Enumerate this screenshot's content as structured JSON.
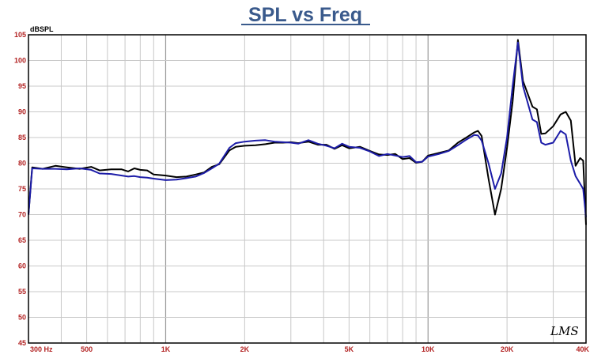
{
  "chart_data": {
    "type": "line",
    "title": "SPL vs Freq",
    "ylabel": "dBSPL",
    "xlabel": "",
    "xscale": "log",
    "xlim": [
      300,
      40000
    ],
    "ylim": [
      45,
      105
    ],
    "grid": true,
    "x_ticks": [
      {
        "value": 300,
        "label": "300  Hz"
      },
      {
        "value": 500,
        "label": "500"
      },
      {
        "value": 1000,
        "label": "1K"
      },
      {
        "value": 2000,
        "label": "2K"
      },
      {
        "value": 5000,
        "label": "5K"
      },
      {
        "value": 10000,
        "label": "10K"
      },
      {
        "value": 20000,
        "label": "20K"
      },
      {
        "value": 40000,
        "label": "40K"
      }
    ],
    "y_ticks": [
      {
        "value": 105,
        "label": "105"
      },
      {
        "value": 100,
        "label": "100"
      },
      {
        "value": 95,
        "label": "95"
      },
      {
        "value": 90,
        "label": "90"
      },
      {
        "value": 85,
        "label": "85"
      },
      {
        "value": 80,
        "label": "80"
      },
      {
        "value": 75,
        "label": "75"
      },
      {
        "value": 70,
        "label": "70"
      },
      {
        "value": 65,
        "label": "65"
      },
      {
        "value": 60,
        "label": "60"
      },
      {
        "value": 55,
        "label": "55"
      },
      {
        "value": 50,
        "label": "50"
      },
      {
        "value": 45,
        "label": "45"
      }
    ],
    "logo_text": "LMS",
    "series": [
      {
        "color": "#000000",
        "points": [
          [
            300,
            70
          ],
          [
            310,
            79.2
          ],
          [
            340,
            78.9
          ],
          [
            380,
            79.5
          ],
          [
            420,
            79.2
          ],
          [
            470,
            78.9
          ],
          [
            520,
            79.3
          ],
          [
            560,
            78.6
          ],
          [
            620,
            78.8
          ],
          [
            680,
            78.8
          ],
          [
            720,
            78.4
          ],
          [
            760,
            79.0
          ],
          [
            800,
            78.7
          ],
          [
            850,
            78.6
          ],
          [
            900,
            77.8
          ],
          [
            1000,
            77.6
          ],
          [
            1100,
            77.3
          ],
          [
            1200,
            77.4
          ],
          [
            1300,
            77.8
          ],
          [
            1400,
            78.2
          ],
          [
            1500,
            79.3
          ],
          [
            1600,
            79.8
          ],
          [
            1750,
            82.5
          ],
          [
            1850,
            83.2
          ],
          [
            2000,
            83.4
          ],
          [
            2200,
            83.5
          ],
          [
            2400,
            83.7
          ],
          [
            2600,
            84.0
          ],
          [
            2800,
            84.0
          ],
          [
            3000,
            84.1
          ],
          [
            3200,
            83.9
          ],
          [
            3500,
            84.2
          ],
          [
            3800,
            83.6
          ],
          [
            4100,
            83.6
          ],
          [
            4400,
            82.8
          ],
          [
            4700,
            83.5
          ],
          [
            5000,
            82.9
          ],
          [
            5500,
            83.2
          ],
          [
            6000,
            82.4
          ],
          [
            6500,
            81.7
          ],
          [
            7000,
            81.6
          ],
          [
            7500,
            81.8
          ],
          [
            8000,
            80.8
          ],
          [
            8500,
            81.0
          ],
          [
            9000,
            80.1
          ],
          [
            9500,
            80.3
          ],
          [
            10000,
            81.5
          ],
          [
            11000,
            82.0
          ],
          [
            12000,
            82.5
          ],
          [
            13000,
            84.0
          ],
          [
            14000,
            85.0
          ],
          [
            15000,
            86.0
          ],
          [
            15500,
            86.3
          ],
          [
            16000,
            85.3
          ],
          [
            17000,
            77
          ],
          [
            18000,
            70
          ],
          [
            19000,
            75
          ],
          [
            20000,
            83
          ],
          [
            21000,
            92
          ],
          [
            22000,
            104
          ],
          [
            23000,
            96
          ],
          [
            25000,
            91
          ],
          [
            26000,
            90.5
          ],
          [
            27000,
            85.7
          ],
          [
            28000,
            85.8
          ],
          [
            30000,
            87.2
          ],
          [
            32000,
            89.5
          ],
          [
            33500,
            90.0
          ],
          [
            35000,
            88.3
          ],
          [
            36500,
            79.5
          ],
          [
            38000,
            81.0
          ],
          [
            39000,
            80.5
          ],
          [
            40000,
            68
          ]
        ]
      },
      {
        "color": "#1c1ca8",
        "points": [
          [
            300,
            70
          ],
          [
            310,
            79
          ],
          [
            340,
            78.9
          ],
          [
            380,
            78.9
          ],
          [
            420,
            78.8
          ],
          [
            470,
            79.0
          ],
          [
            520,
            78.7
          ],
          [
            560,
            78.0
          ],
          [
            620,
            77.9
          ],
          [
            680,
            77.6
          ],
          [
            720,
            77.4
          ],
          [
            760,
            77.5
          ],
          [
            800,
            77.3
          ],
          [
            850,
            77.2
          ],
          [
            900,
            77.0
          ],
          [
            1000,
            76.7
          ],
          [
            1100,
            76.8
          ],
          [
            1200,
            77.1
          ],
          [
            1300,
            77.4
          ],
          [
            1400,
            78.1
          ],
          [
            1500,
            79.0
          ],
          [
            1600,
            79.9
          ],
          [
            1750,
            83.0
          ],
          [
            1850,
            83.9
          ],
          [
            2000,
            84.2
          ],
          [
            2200,
            84.4
          ],
          [
            2400,
            84.5
          ],
          [
            2600,
            84.2
          ],
          [
            2800,
            84.1
          ],
          [
            3000,
            84.0
          ],
          [
            3200,
            83.8
          ],
          [
            3500,
            84.5
          ],
          [
            3800,
            83.8
          ],
          [
            4100,
            83.4
          ],
          [
            4400,
            82.9
          ],
          [
            4700,
            83.8
          ],
          [
            5000,
            83.2
          ],
          [
            5500,
            83.0
          ],
          [
            6000,
            82.3
          ],
          [
            6500,
            81.4
          ],
          [
            7000,
            81.8
          ],
          [
            7500,
            81.5
          ],
          [
            8000,
            81.2
          ],
          [
            8500,
            81.4
          ],
          [
            9000,
            80.2
          ],
          [
            9500,
            80.3
          ],
          [
            10000,
            81.3
          ],
          [
            11000,
            81.8
          ],
          [
            12000,
            82.4
          ],
          [
            13000,
            83.5
          ],
          [
            14000,
            84.6
          ],
          [
            15000,
            85.5
          ],
          [
            15500,
            85.4
          ],
          [
            16000,
            84.4
          ],
          [
            17000,
            80
          ],
          [
            18000,
            75
          ],
          [
            19000,
            78
          ],
          [
            20000,
            85
          ],
          [
            21000,
            95
          ],
          [
            22000,
            103.5
          ],
          [
            23000,
            95
          ],
          [
            25000,
            88.5
          ],
          [
            26000,
            88
          ],
          [
            27000,
            84
          ],
          [
            28000,
            83.6
          ],
          [
            30000,
            84.0
          ],
          [
            32000,
            86.3
          ],
          [
            33500,
            85.6
          ],
          [
            35000,
            80.5
          ],
          [
            36500,
            77.5
          ],
          [
            38000,
            76.0
          ],
          [
            39000,
            75.0
          ],
          [
            40000,
            69.5
          ]
        ]
      }
    ]
  }
}
